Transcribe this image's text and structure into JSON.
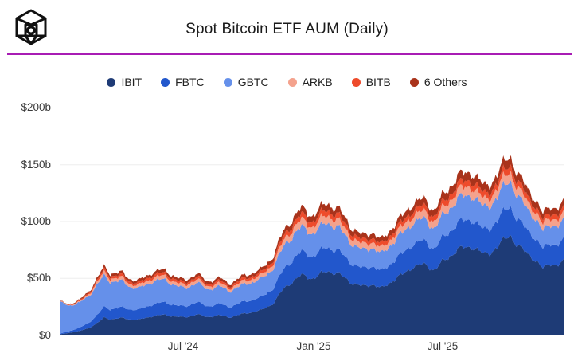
{
  "header": {
    "title": "Spot Bitcoin ETF AUM (Daily)",
    "logo": "blockworks-cube-logo",
    "divider_color": "#a81cb4"
  },
  "chart_data": {
    "type": "area",
    "stacked": true,
    "title": "Spot Bitcoin ETF AUM (Daily)",
    "unit": "USD billions",
    "grid": "horizontal",
    "legend_position": "top",
    "ylim": [
      0,
      200
    ],
    "y_ticks": [
      "$0",
      "$50b",
      "$100b",
      "$150b",
      "$200b"
    ],
    "x_ticks": [
      "Jul '24",
      "Jan '25",
      "Jul '25"
    ],
    "x_range": [
      "2024-01-11",
      "2025-12-22"
    ],
    "anchor_dates": [
      "2024-01-11",
      "2024-01-25",
      "2024-02-08",
      "2024-02-22",
      "2024-03-06",
      "2024-03-14",
      "2024-03-22",
      "2024-04-08",
      "2024-04-20",
      "2024-05-02",
      "2024-05-21",
      "2024-06-06",
      "2024-06-24",
      "2024-07-05",
      "2024-07-22",
      "2024-08-05",
      "2024-08-23",
      "2024-09-06",
      "2024-09-27",
      "2024-10-21",
      "2024-11-06",
      "2024-11-22",
      "2024-12-06",
      "2024-12-17",
      "2025-01-02",
      "2025-01-22",
      "2025-02-06",
      "2025-02-26",
      "2025-03-12",
      "2025-03-26",
      "2025-04-08",
      "2025-04-25",
      "2025-05-09",
      "2025-05-22",
      "2025-06-09",
      "2025-06-22",
      "2025-07-10",
      "2025-07-23",
      "2025-08-13",
      "2025-08-30",
      "2025-09-18",
      "2025-10-06",
      "2025-10-17",
      "2025-11-04",
      "2025-11-21",
      "2025-12-02",
      "2025-12-12",
      "2025-12-22"
    ],
    "series": [
      {
        "name": "IBIT",
        "color": "#1e3b76",
        "values": [
          0.7,
          2.0,
          3.6,
          6.5,
          11.5,
          15.5,
          14.0,
          15.0,
          13.8,
          13.6,
          16.8,
          17.8,
          16.2,
          15.4,
          18.3,
          15.9,
          17.4,
          15.6,
          18.9,
          21.8,
          27.5,
          41.0,
          48.5,
          52.5,
          50.0,
          56.5,
          54.0,
          46.0,
          42.5,
          45.0,
          40.8,
          48.5,
          53.5,
          60.5,
          62.0,
          57.5,
          68.0,
          74.5,
          78.5,
          70.5,
          76.5,
          89.5,
          77.5,
          71.0,
          58.0,
          64.5,
          60.5,
          65.0
        ]
      },
      {
        "name": "FBTC",
        "color": "#2257cc",
        "values": [
          0.5,
          1.6,
          2.8,
          4.8,
          7.5,
          9.5,
          8.8,
          9.3,
          8.8,
          8.7,
          10.4,
          11.0,
          9.9,
          9.4,
          10.8,
          9.4,
          10.0,
          9.1,
          10.5,
          11.4,
          13.2,
          17.2,
          19.6,
          20.6,
          19.4,
          21.2,
          20.1,
          17.1,
          15.6,
          16.3,
          14.8,
          17.0,
          18.4,
          20.2,
          20.5,
          18.9,
          21.6,
          23.2,
          24.1,
          21.6,
          23.1,
          26.1,
          22.6,
          20.6,
          17.1,
          18.6,
          17.6,
          18.6
        ]
      },
      {
        "name": "GBTC",
        "color": "#6590ea",
        "values": [
          27.5,
          22.5,
          21.8,
          24.0,
          27.0,
          27.5,
          24.5,
          23.0,
          19.8,
          18.8,
          20.3,
          20.0,
          17.2,
          16.0,
          17.3,
          14.9,
          15.4,
          13.9,
          15.3,
          16.0,
          17.8,
          20.2,
          21.2,
          21.6,
          20.4,
          21.7,
          20.5,
          17.5,
          16.0,
          16.6,
          15.1,
          17.0,
          18.0,
          19.1,
          19.4,
          17.9,
          20.1,
          21.2,
          21.6,
          19.6,
          20.6,
          23.1,
          20.1,
          18.6,
          15.6,
          17.1,
          16.1,
          17.1
        ]
      },
      {
        "name": "ARKB",
        "color": "#f4a28d",
        "values": [
          0.2,
          0.5,
          0.8,
          1.5,
          2.4,
          3.2,
          2.9,
          3.0,
          2.7,
          2.7,
          3.2,
          3.3,
          2.9,
          2.7,
          3.1,
          2.7,
          2.9,
          2.6,
          3.0,
          3.3,
          4.1,
          5.3,
          6.1,
          6.4,
          6.1,
          6.7,
          6.3,
          5.4,
          4.9,
          5.2,
          4.7,
          5.4,
          5.9,
          6.4,
          6.5,
          6.0,
          6.9,
          7.4,
          7.7,
          6.9,
          7.4,
          8.3,
          7.2,
          6.6,
          5.5,
          6.0,
          5.7,
          6.0
        ]
      },
      {
        "name": "BITB",
        "color": "#ee4b2b",
        "values": [
          0.2,
          0.4,
          0.7,
          1.1,
          1.7,
          2.3,
          2.1,
          2.2,
          2.0,
          2.0,
          2.4,
          2.5,
          2.2,
          2.1,
          2.3,
          2.0,
          2.1,
          1.9,
          2.2,
          2.4,
          3.0,
          3.9,
          4.4,
          4.6,
          4.4,
          4.8,
          4.6,
          3.9,
          3.6,
          3.7,
          3.4,
          3.9,
          4.2,
          4.6,
          4.7,
          4.3,
          5.0,
          5.3,
          5.5,
          5.0,
          5.2,
          5.9,
          5.1,
          4.7,
          3.9,
          4.3,
          4.1,
          4.3
        ]
      },
      {
        "name": "6 Others",
        "color": "#a9331b",
        "values": [
          0.3,
          0.6,
          0.9,
          1.4,
          2.0,
          2.5,
          2.3,
          2.4,
          2.2,
          2.2,
          2.6,
          2.7,
          2.4,
          2.3,
          2.6,
          2.3,
          2.4,
          2.2,
          2.5,
          2.8,
          3.4,
          4.6,
          5.2,
          5.5,
          5.3,
          5.8,
          5.5,
          4.7,
          4.3,
          4.5,
          4.1,
          4.8,
          5.2,
          5.9,
          6.0,
          5.6,
          6.6,
          7.1,
          7.4,
          6.7,
          7.1,
          8.1,
          7.1,
          6.5,
          5.4,
          5.9,
          5.6,
          5.9
        ]
      }
    ]
  }
}
